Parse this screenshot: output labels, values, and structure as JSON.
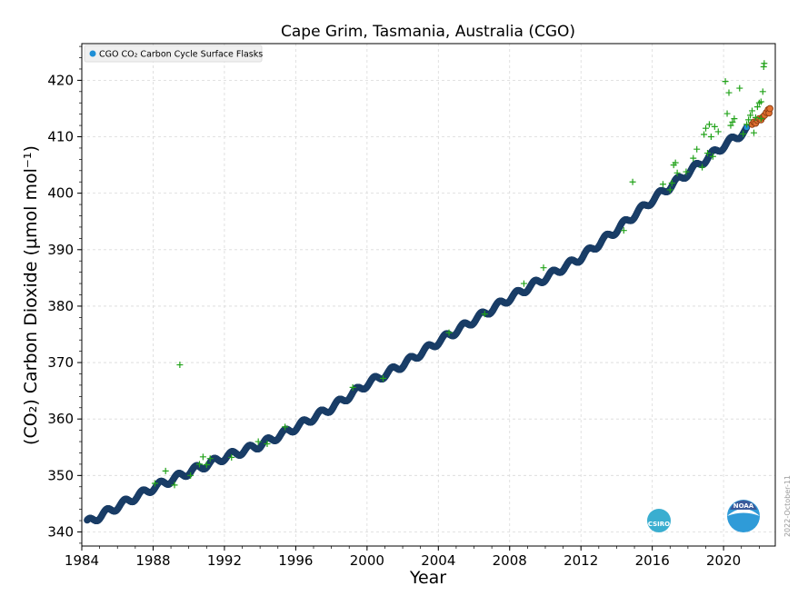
{
  "chart_data": {
    "type": "scatter",
    "title": "Cape Grim, Tasmania, Australia (CGO)",
    "xlabel": "Year",
    "ylabel": "(CO₂) Carbon Dioxide (µmol mol⁻¹)",
    "xlim": [
      1984,
      2022.9
    ],
    "ylim": [
      337.5,
      426.5
    ],
    "xticks": [
      1984,
      1988,
      1992,
      1996,
      2000,
      2004,
      2008,
      2012,
      2016,
      2020
    ],
    "yticks": [
      340,
      350,
      360,
      370,
      380,
      390,
      400,
      410,
      420
    ],
    "grid": true,
    "legend_position": "top-left",
    "legend": [
      "CGO CO₂ Carbon Cycle Surface Flasks"
    ],
    "datestamp": "2022-October-11",
    "logos": [
      "CSIRO",
      "NOAA"
    ],
    "colors": {
      "flask": "#1f8fd6",
      "flask_edge": "#1a3d66",
      "flagged": "#22a31a",
      "preliminary": "#e07030",
      "preliminary_edge": "#8a3a10",
      "csiro_logo": "#3aaed0",
      "noaa_logo": "#2f9bd8"
    },
    "series": [
      {
        "name": "CGO CO₂ Carbon Cycle Surface Flasks",
        "marker": "circle",
        "trend_points": [
          [
            1984.3,
            341.6
          ],
          [
            1986,
            344.5
          ],
          [
            1988,
            347.8
          ],
          [
            1990,
            350.6
          ],
          [
            1992,
            353.2
          ],
          [
            1994,
            355.4
          ],
          [
            1996,
            358.5
          ],
          [
            1998,
            362.0
          ],
          [
            2000,
            366.2
          ],
          [
            2002,
            369.6
          ],
          [
            2004,
            373.7
          ],
          [
            2006,
            377.5
          ],
          [
            2008,
            381.4
          ],
          [
            2010,
            385.0
          ],
          [
            2012,
            388.6
          ],
          [
            2014,
            393.5
          ],
          [
            2016,
            398.8
          ],
          [
            2018,
            403.6
          ],
          [
            2020,
            408.4
          ],
          [
            2021.3,
            411.2
          ]
        ],
        "seasonal_amplitude": 0.6
      },
      {
        "name": "",
        "marker": "circle",
        "points": [
          [
            2021.6,
            412.2
          ],
          [
            2021.7,
            412.6
          ],
          [
            2021.8,
            412.4
          ],
          [
            2021.9,
            412.9
          ],
          [
            2022.0,
            413.2
          ],
          [
            2022.1,
            413.0
          ],
          [
            2022.2,
            413.5
          ],
          [
            2022.3,
            413.8
          ],
          [
            2022.4,
            414.3
          ],
          [
            2022.5,
            414.8
          ],
          [
            2022.55,
            414.2
          ],
          [
            2022.6,
            415.0
          ]
        ]
      },
      {
        "name": "",
        "marker": "plus",
        "points": [
          [
            1989.5,
            369.6
          ],
          [
            1988.1,
            348.6
          ],
          [
            1988.7,
            350.8
          ],
          [
            1989.2,
            348.3
          ],
          [
            1990.1,
            350.0
          ],
          [
            1990.6,
            352.0
          ],
          [
            1990.8,
            353.3
          ],
          [
            1991.0,
            351.9
          ],
          [
            1991.2,
            353.0
          ],
          [
            1992.4,
            353.2
          ],
          [
            1993.9,
            356.0
          ],
          [
            1994.4,
            355.6
          ],
          [
            1995.4,
            358.6
          ],
          [
            1999.2,
            365.6
          ],
          [
            2000.9,
            367.2
          ],
          [
            2004.6,
            375.3
          ],
          [
            2006.6,
            378.6
          ],
          [
            2008.8,
            384.0
          ],
          [
            2009.9,
            386.8
          ],
          [
            2014.4,
            393.4
          ],
          [
            2014.9,
            402.0
          ],
          [
            2016.6,
            401.6
          ],
          [
            2017.0,
            400.6
          ],
          [
            2017.1,
            401.8
          ],
          [
            2017.2,
            405.0
          ],
          [
            2017.3,
            405.4
          ],
          [
            2017.4,
            403.6
          ],
          [
            2017.9,
            403.8
          ],
          [
            2018.3,
            406.2
          ],
          [
            2018.5,
            407.8
          ],
          [
            2018.8,
            404.6
          ],
          [
            2018.9,
            410.4
          ],
          [
            2019.0,
            411.5
          ],
          [
            2019.1,
            407.1
          ],
          [
            2019.2,
            412.2
          ],
          [
            2019.3,
            410.0
          ],
          [
            2019.4,
            406.5
          ],
          [
            2019.5,
            411.8
          ],
          [
            2019.7,
            410.9
          ],
          [
            2020.1,
            419.8
          ],
          [
            2020.2,
            414.1
          ],
          [
            2020.3,
            417.8
          ],
          [
            2020.4,
            412.0
          ],
          [
            2020.5,
            412.6
          ],
          [
            2020.6,
            413.2
          ],
          [
            2020.9,
            418.6
          ],
          [
            2021.1,
            410.5
          ],
          [
            2021.4,
            413.0
          ],
          [
            2021.5,
            413.8
          ],
          [
            2021.6,
            414.6
          ],
          [
            2021.7,
            410.7
          ],
          [
            2021.8,
            413.4
          ],
          [
            2021.9,
            415.3
          ],
          [
            2022.0,
            416.0
          ],
          [
            2022.1,
            416.2
          ],
          [
            2022.2,
            418.0
          ],
          [
            2022.25,
            422.4
          ],
          [
            2022.28,
            423.0
          ],
          [
            2022.1,
            413.2
          ],
          [
            2021.3,
            412.2
          ]
        ]
      }
    ]
  }
}
